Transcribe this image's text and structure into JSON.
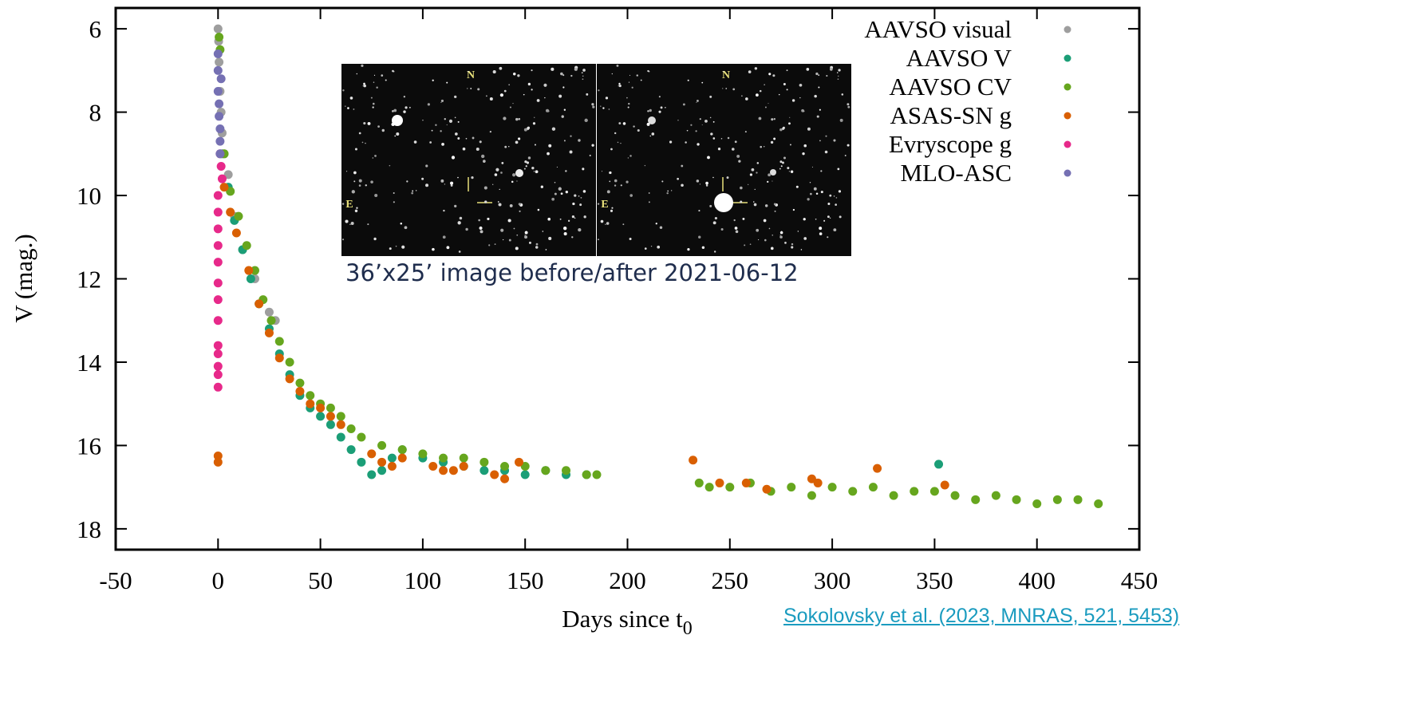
{
  "chart_data": {
    "type": "scatter",
    "x_label": {
      "text": "Days since t",
      "subscript": "0"
    },
    "y_label": "V (mag.)",
    "xlim": [
      -50,
      450
    ],
    "xticks": [
      -50,
      0,
      50,
      100,
      150,
      200,
      250,
      300,
      350,
      400,
      450
    ],
    "ylim": [
      5.5,
      18.5
    ],
    "y_inverted": true,
    "yticks": [
      6,
      8,
      10,
      12,
      14,
      16,
      18
    ],
    "legend": "top-right",
    "series": [
      {
        "name": "AAVSO visual",
        "color": "#9e9e9e",
        "x": [
          0,
          0.3,
          0.5,
          1,
          1.5,
          2,
          3,
          5,
          8,
          12,
          18,
          25,
          28
        ],
        "values": [
          6.0,
          6.3,
          6.8,
          7.5,
          8.0,
          8.5,
          9.0,
          9.5,
          10.5,
          11.3,
          12.0,
          12.8,
          13.0
        ]
      },
      {
        "name": "AAVSO V",
        "color": "#1b9e77",
        "x": [
          2,
          5,
          8,
          12,
          16,
          20,
          25,
          30,
          35,
          40,
          45,
          50,
          55,
          60,
          65,
          70,
          75,
          80,
          85,
          90,
          100,
          110,
          120,
          130,
          140,
          150,
          160,
          170,
          180,
          352
        ],
        "values": [
          9.0,
          9.8,
          10.6,
          11.3,
          12.0,
          12.6,
          13.2,
          13.8,
          14.3,
          14.8,
          15.1,
          15.3,
          15.5,
          15.8,
          16.1,
          16.4,
          16.7,
          16.6,
          16.3,
          16.1,
          16.3,
          16.4,
          16.5,
          16.6,
          16.6,
          16.7,
          16.6,
          16.7,
          16.7,
          16.45
        ]
      },
      {
        "name": "AAVSO CV",
        "color": "#66a61e",
        "x": [
          0.5,
          1,
          3,
          6,
          10,
          14,
          18,
          22,
          26,
          30,
          35,
          40,
          45,
          50,
          55,
          60,
          65,
          70,
          80,
          90,
          100,
          110,
          120,
          130,
          140,
          150,
          160,
          170,
          180,
          185,
          235,
          240,
          250,
          260,
          270,
          280,
          290,
          300,
          310,
          320,
          330,
          340,
          350,
          360,
          370,
          380,
          390,
          400,
          410,
          420,
          430
        ],
        "values": [
          6.2,
          6.5,
          9.0,
          9.9,
          10.5,
          11.2,
          11.8,
          12.5,
          13.0,
          13.5,
          14.0,
          14.5,
          14.8,
          15.0,
          15.1,
          15.3,
          15.6,
          15.8,
          16.0,
          16.1,
          16.2,
          16.3,
          16.3,
          16.4,
          16.5,
          16.5,
          16.6,
          16.6,
          16.7,
          16.7,
          16.9,
          17.0,
          17.0,
          16.9,
          17.1,
          17.0,
          17.2,
          17.0,
          17.1,
          17.0,
          17.2,
          17.1,
          17.1,
          17.2,
          17.3,
          17.2,
          17.3,
          17.4,
          17.3,
          17.3,
          17.4
        ]
      },
      {
        "name": "ASAS-SN g",
        "color": "#d95f02",
        "x": [
          0,
          0,
          3,
          6,
          9,
          15,
          20,
          25,
          30,
          35,
          40,
          45,
          50,
          55,
          60,
          75,
          80,
          85,
          90,
          105,
          110,
          115,
          120,
          135,
          140,
          147,
          232,
          245,
          258,
          268,
          290,
          293,
          322,
          355
        ],
        "values": [
          16.25,
          16.4,
          9.8,
          10.4,
          10.9,
          11.8,
          12.6,
          13.3,
          13.9,
          14.4,
          14.7,
          15.0,
          15.1,
          15.3,
          15.5,
          16.2,
          16.4,
          16.5,
          16.3,
          16.5,
          16.6,
          16.6,
          16.5,
          16.7,
          16.8,
          16.4,
          16.35,
          16.9,
          16.9,
          17.05,
          16.8,
          16.9,
          16.55,
          16.95
        ]
      },
      {
        "name": "Evryscope g",
        "color": "#e7298a",
        "x": [
          1,
          1.5,
          2,
          0,
          0,
          0,
          0,
          0,
          0,
          0,
          0,
          0,
          0,
          0,
          0,
          0
        ],
        "values": [
          9.0,
          9.3,
          9.6,
          10.0,
          10.4,
          10.8,
          11.2,
          11.6,
          12.1,
          12.5,
          13.0,
          13.6,
          13.8,
          14.1,
          14.3,
          14.6
        ]
      },
      {
        "name": "MLO-ASC",
        "color": "#7570b3",
        "x": [
          0,
          0,
          0,
          0.5,
          0.5,
          1,
          1,
          1,
          1.5
        ],
        "values": [
          6.6,
          7.0,
          7.5,
          7.8,
          8.1,
          8.4,
          8.7,
          9.0,
          7.2
        ]
      }
    ]
  },
  "inset": {
    "caption": "36’x25’ image before/after 2021-06-12",
    "panels": [
      {
        "north": "N",
        "east": "E"
      },
      {
        "north": "N",
        "east": "E"
      }
    ]
  },
  "citation": "Sokolovsky et al. (2023, MNRAS, 521, 5453)"
}
